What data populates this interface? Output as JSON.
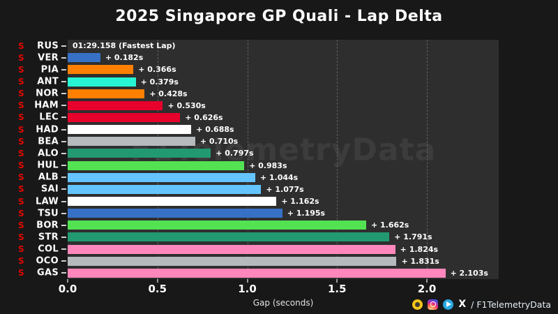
{
  "title": "2025 Singapore GP Quali - Lap Delta",
  "watermark": "F1TelemetryData",
  "footer": {
    "x_glyph": "X",
    "handle": "/ F1TelemetryData"
  },
  "colors": {
    "background": "#181818",
    "plot_background": "#2e2e2e",
    "tyre_soft_red": "#e10600",
    "grid": "#5f5f5f",
    "text": "#ffffff"
  },
  "chart_data": {
    "type": "bar",
    "orientation": "horizontal",
    "title": "2025 Singapore GP Quali - Lap Delta",
    "xlabel": "Gap (seconds)",
    "xlim": [
      0,
      2.4
    ],
    "xtick_values": [
      0,
      0.5,
      1.0,
      1.5,
      2.0
    ],
    "xtick_labels": [
      "0.0",
      "0.5",
      "1.0",
      "1.5",
      "2.0"
    ],
    "grid": "dashed-vertical",
    "legend": "none",
    "fastest_lap_time": "01:29.158",
    "categories": [
      "RUS",
      "VER",
      "PIA",
      "ANT",
      "NOR",
      "HAM",
      "LEC",
      "HAD",
      "BEA",
      "ALO",
      "HUL",
      "ALB",
      "SAI",
      "LAW",
      "TSU",
      "BOR",
      "STR",
      "COL",
      "OCO",
      "GAS"
    ],
    "tyre_compounds": [
      "S",
      "S",
      "S",
      "S",
      "S",
      "S",
      "S",
      "S",
      "S",
      "S",
      "S",
      "S",
      "S",
      "S",
      "S",
      "S",
      "S",
      "S",
      "S",
      "S"
    ],
    "values": [
      0,
      0.182,
      0.366,
      0.379,
      0.428,
      0.53,
      0.626,
      0.688,
      0.71,
      0.797,
      0.983,
      1.044,
      1.077,
      1.162,
      1.195,
      1.662,
      1.791,
      1.824,
      1.831,
      2.103
    ],
    "bar_labels": [
      "01:29.158 (Fastest Lap)",
      "+ 0.182s",
      "+ 0.366s",
      "+ 0.379s",
      "+ 0.428s",
      "+ 0.530s",
      "+ 0.626s",
      "+ 0.688s",
      "+ 0.710s",
      "+ 0.797s",
      "+ 0.983s",
      "+ 1.044s",
      "+ 1.077s",
      "+ 1.162s",
      "+ 1.195s",
      "+ 1.662s",
      "+ 1.791s",
      "+ 1.824s",
      "+ 1.831s",
      "+ 2.103s"
    ],
    "bar_colors": [
      "#27F4D2",
      "#3671C6",
      "#FF8000",
      "#27F4D2",
      "#FF8000",
      "#E8002D",
      "#E8002D",
      "#FFFFFF",
      "#B6BABD",
      "#229971",
      "#52E252",
      "#64C4FF",
      "#64C4FF",
      "#FFFFFF",
      "#3671C6",
      "#52E252",
      "#229971",
      "#FF87BC",
      "#B6BABD",
      "#FF87BC"
    ]
  }
}
